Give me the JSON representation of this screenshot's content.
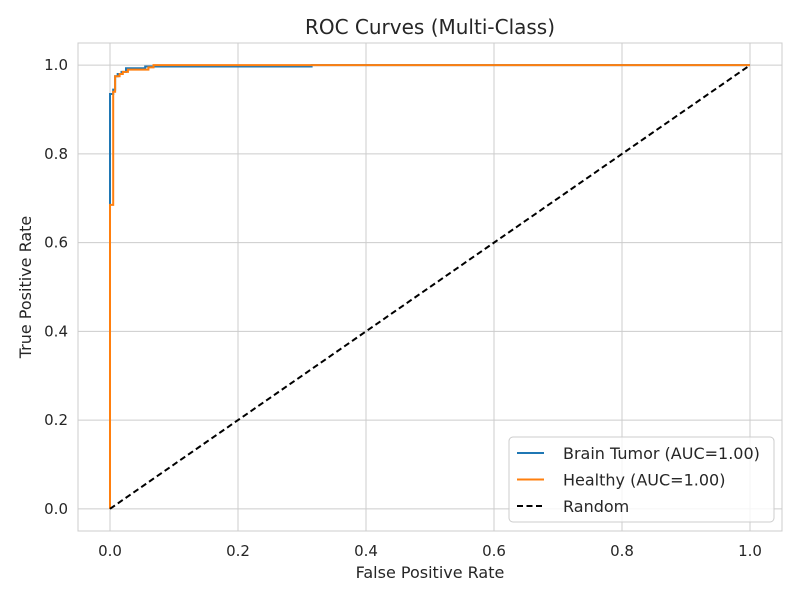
{
  "chart_data": {
    "type": "line",
    "title": "ROC Curves (Multi-Class)",
    "xlabel": "False Positive Rate",
    "ylabel": "True Positive Rate",
    "xlim": [
      -0.05,
      1.05
    ],
    "ylim": [
      -0.05,
      1.05
    ],
    "xticks": [
      "0.0",
      "0.2",
      "0.4",
      "0.6",
      "0.8",
      "1.0"
    ],
    "yticks": [
      "0.0",
      "0.2",
      "0.4",
      "0.6",
      "0.8",
      "1.0"
    ],
    "grid": true,
    "legend_position": "lower-right",
    "series": [
      {
        "name": "Brain Tumor (AUC=1.00)",
        "color": "#1f77b4",
        "style": "solid",
        "x": [
          0.0,
          0.0,
          0.005,
          0.005,
          0.008,
          0.008,
          0.012,
          0.012,
          0.018,
          0.018,
          0.025,
          0.025,
          0.055,
          0.055,
          0.315,
          0.315,
          1.0
        ],
        "y": [
          0.0,
          0.935,
          0.935,
          0.945,
          0.945,
          0.975,
          0.975,
          0.98,
          0.98,
          0.985,
          0.985,
          0.993,
          0.993,
          0.997,
          0.997,
          1.0,
          1.0
        ]
      },
      {
        "name": "Healthy (AUC=1.00)",
        "color": "#ff7f0e",
        "style": "solid",
        "x": [
          0.0,
          0.0,
          0.005,
          0.005,
          0.008,
          0.008,
          0.015,
          0.015,
          0.02,
          0.02,
          0.028,
          0.028,
          0.06,
          0.06,
          0.068,
          0.068,
          1.0
        ],
        "y": [
          0.0,
          0.685,
          0.685,
          0.94,
          0.94,
          0.975,
          0.975,
          0.98,
          0.98,
          0.985,
          0.985,
          0.99,
          0.99,
          0.995,
          0.995,
          1.0,
          1.0
        ]
      },
      {
        "name": "Random",
        "color": "#000000",
        "style": "dashed",
        "x": [
          0.0,
          1.0
        ],
        "y": [
          0.0,
          1.0
        ]
      }
    ]
  }
}
